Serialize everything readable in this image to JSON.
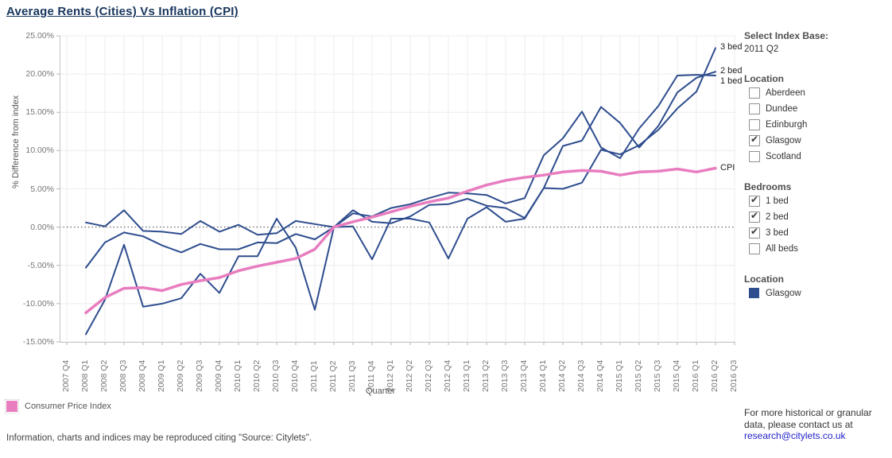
{
  "title": "Average Rents (Cities) Vs Inflation (CPI)",
  "colors": {
    "rent_line": "#2e4d8e",
    "cpi_line": "#e87dbf",
    "grid": "#ececec",
    "axis": "#c4c4c4"
  },
  "chart_data": {
    "type": "line",
    "title": "Average Rents (Cities) Vs Inflation (CPI)",
    "xlabel": "Quarter",
    "ylabel": "% Difference from index",
    "ylim": [
      -15,
      25
    ],
    "grid": true,
    "zero_line_dotted": true,
    "y_ticks": [
      {
        "v": 25,
        "label": "25.00%"
      },
      {
        "v": 20,
        "label": "20.00%"
      },
      {
        "v": 15,
        "label": "15.00%"
      },
      {
        "v": 10,
        "label": "10.00%"
      },
      {
        "v": 5,
        "label": "5.00%"
      },
      {
        "v": 0,
        "label": "0.00%"
      },
      {
        "v": -5,
        "label": "-5.00%"
      },
      {
        "v": -10,
        "label": "-10.00%"
      },
      {
        "v": -15,
        "label": "-15.00%"
      }
    ],
    "categories": [
      "2007 Q4",
      "2008 Q1",
      "2008 Q2",
      "2008 Q3",
      "2008 Q4",
      "2009 Q1",
      "2009 Q2",
      "2009 Q3",
      "2009 Q4",
      "2010 Q1",
      "2010 Q2",
      "2010 Q3",
      "2010 Q4",
      "2011 Q1",
      "2011 Q2",
      "2011 Q3",
      "2011 Q4",
      "2012 Q1",
      "2012 Q2",
      "2012 Q3",
      "2012 Q4",
      "2013 Q1",
      "2013 Q2",
      "2013 Q3",
      "2013 Q4",
      "2014 Q1",
      "2014 Q2",
      "2014 Q3",
      "2014 Q4",
      "2015 Q1",
      "2015 Q2",
      "2015 Q3",
      "2015 Q4",
      "2016 Q1",
      "2016 Q2",
      "2016 Q3"
    ],
    "series": [
      {
        "name": "1 bed",
        "color": "#2e4d8e",
        "width": 2,
        "values": [
          null,
          0.6,
          0.1,
          2.2,
          -0.5,
          -0.6,
          -0.9,
          0.8,
          -0.6,
          0.3,
          -1.0,
          -0.8,
          0.8,
          0.4,
          0.0,
          1.8,
          1.4,
          2.5,
          3.0,
          3.8,
          4.5,
          4.4,
          4.2,
          3.1,
          3.8,
          9.4,
          11.6,
          15.1,
          10.4,
          9.0,
          12.9,
          15.8,
          19.8,
          19.9,
          19.8,
          null
        ]
      },
      {
        "name": "2 bed",
        "color": "#2e4d8e",
        "width": 2,
        "values": [
          null,
          -5.3,
          -2.0,
          -0.7,
          -1.2,
          -2.4,
          -3.3,
          -2.2,
          -2.9,
          -2.9,
          -2.0,
          -2.1,
          -0.9,
          -1.6,
          0.0,
          2.2,
          0.7,
          0.5,
          1.4,
          2.9,
          3.0,
          3.7,
          2.8,
          2.5,
          1.2,
          5.1,
          10.6,
          11.3,
          15.7,
          13.6,
          10.4,
          13.2,
          17.6,
          19.5,
          20.3,
          null
        ]
      },
      {
        "name": "3 bed",
        "color": "#2e4d8e",
        "width": 2,
        "values": [
          null,
          -14.0,
          -9.5,
          -2.3,
          -10.4,
          -10.0,
          -9.3,
          -6.1,
          -8.6,
          -3.8,
          -3.8,
          1.1,
          -2.7,
          -10.8,
          0.0,
          0.1,
          -4.2,
          1.1,
          1.1,
          0.6,
          -4.1,
          1.1,
          2.6,
          0.7,
          1.1,
          5.1,
          5.0,
          5.8,
          10.1,
          9.5,
          10.7,
          12.7,
          15.5,
          17.7,
          23.4,
          null
        ]
      },
      {
        "name": "CPI",
        "color": "#e87dbf",
        "width": 3.5,
        "values": [
          null,
          -11.2,
          -9.2,
          -8.0,
          -7.9,
          -8.3,
          -7.5,
          -7.0,
          -6.6,
          -5.7,
          -5.1,
          -4.6,
          -4.1,
          -2.9,
          0.0,
          0.7,
          1.3,
          2.0,
          2.7,
          3.3,
          3.8,
          4.7,
          5.5,
          6.1,
          6.5,
          6.8,
          7.2,
          7.4,
          7.3,
          6.8,
          7.2,
          7.3,
          7.6,
          7.2,
          7.7,
          null
        ]
      }
    ],
    "legend_position": "bottom-left"
  },
  "sidebar": {
    "index_base": {
      "label": "Select Index Base:",
      "value": "2011 Q2"
    },
    "location_filter": {
      "title": "Location",
      "options": [
        {
          "label": "Aberdeen",
          "checked": false
        },
        {
          "label": "Dundee",
          "checked": false
        },
        {
          "label": "Edinburgh",
          "checked": false
        },
        {
          "label": "Glasgow",
          "checked": true
        },
        {
          "label": "Scotland",
          "checked": false
        }
      ]
    },
    "bedrooms_filter": {
      "title": "Bedrooms",
      "options": [
        {
          "label": "1 bed",
          "checked": true
        },
        {
          "label": "2 bed",
          "checked": true
        },
        {
          "label": "3 bed",
          "checked": true
        },
        {
          "label": "All beds",
          "checked": false
        }
      ]
    },
    "location_legend": {
      "title": "Location",
      "items": [
        {
          "label": "Glasgow",
          "color": "#2e4d8e"
        }
      ]
    },
    "contact": {
      "text": "For more historical or granular data, please contact us at",
      "link": "research@citylets.co.uk"
    }
  },
  "legend": {
    "cpi_label": "Consumer Price Index",
    "cpi_color": "#e87dbf"
  },
  "footer": "Information, charts and indices may be reproduced citing \"Source: Citylets\"."
}
